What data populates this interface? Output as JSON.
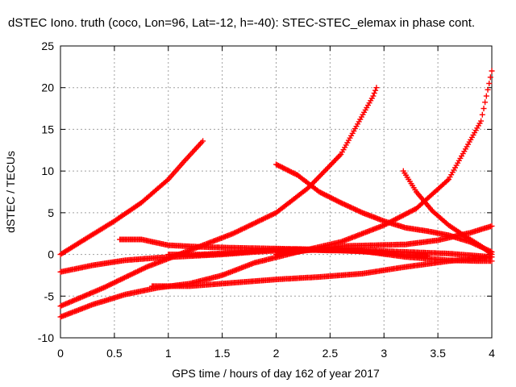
{
  "chart_data": {
    "type": "scatter",
    "title": "dSTEC Iono. truth (coco, Lon=96, Lat=-12, h=-40): STEC-STEC_elemax in phase cont.",
    "xlabel": "GPS time / hours of day 162 of year 2017",
    "ylabel": "dSTEC  / TECUs",
    "xlim": [
      0,
      4
    ],
    "ylim": [
      -10,
      25
    ],
    "xticks": [
      0,
      0.5,
      1,
      1.5,
      2,
      2.5,
      3,
      3.5,
      4
    ],
    "xtick_labels": [
      "0",
      "0.5",
      "1",
      "1.5",
      "2",
      "2.5",
      "3",
      "3.5",
      "4"
    ],
    "yticks": [
      -10,
      -5,
      0,
      5,
      10,
      15,
      20,
      25
    ],
    "ytick_labels": [
      "-10",
      "-5",
      "0",
      "5",
      "10",
      "15",
      "20",
      "25"
    ],
    "grid": true,
    "legend": "none",
    "marker": "+ (plus), dense",
    "color": "#ff0000",
    "series": [
      {
        "x": [
          0,
          0.25,
          0.5,
          0.75,
          1.0,
          1.15,
          1.32
        ],
        "y": [
          0,
          2,
          4,
          6.2,
          9,
          11.2,
          13.6
        ]
      },
      {
        "x": [
          0,
          0.4,
          0.8,
          1.2,
          1.6,
          2.0,
          2.3,
          2.6,
          2.9,
          2.93
        ],
        "y": [
          -6.2,
          -4,
          -1.5,
          0.5,
          2.5,
          5,
          8,
          12,
          19,
          20
        ]
      },
      {
        "x": [
          0,
          0.3,
          0.6,
          0.9,
          1.2,
          1.5,
          1.8,
          2.2,
          2.6,
          3.0,
          3.2,
          3.4
        ],
        "y": [
          -2.1,
          -1.3,
          -0.7,
          -0.4,
          -0.2,
          0,
          0.3,
          0.6,
          0.5,
          0.2,
          -0.1,
          -0.2
        ]
      },
      {
        "x": [
          0,
          0.3,
          0.6,
          0.9,
          1.2,
          1.5,
          1.8,
          2.2,
          2.6,
          3.0,
          3.3,
          3.6,
          3.9,
          4.0
        ],
        "y": [
          -7.5,
          -6,
          -4.8,
          -4,
          -3.5,
          -2.5,
          -1,
          0.3,
          1.5,
          3.5,
          5.5,
          9,
          16,
          22
        ]
      },
      {
        "x": [
          0.55,
          0.75,
          1.0,
          1.3,
          1.6,
          2.0,
          2.4,
          2.8,
          3.2,
          3.6,
          3.9,
          4.0
        ],
        "y": [
          1.8,
          1.8,
          1.1,
          0.9,
          0.8,
          0.7,
          0.6,
          0.5,
          0.3,
          0.1,
          -0.2,
          -0.3
        ]
      },
      {
        "x": [
          0.85,
          1.2,
          1.6,
          2.0,
          2.4,
          2.8,
          3.2,
          3.6,
          4.0
        ],
        "y": [
          -3.8,
          -3.8,
          -3.4,
          -3.0,
          -2.7,
          -2.3,
          -1.5,
          -0.8,
          -0.3
        ]
      },
      {
        "x": [
          1.0,
          1.3,
          1.6,
          2.0,
          2.4,
          2.8,
          3.2,
          3.6,
          3.9,
          4.0
        ],
        "y": [
          0,
          0,
          0.2,
          0.6,
          0.5,
          0.4,
          -0.3,
          -0.7,
          -0.8,
          -0.8
        ]
      },
      {
        "x": [
          2.0,
          2.2,
          2.4,
          2.6,
          2.8,
          3.0,
          3.2,
          3.4,
          3.6,
          3.8,
          4.0
        ],
        "y": [
          10.8,
          9.5,
          7.5,
          6.2,
          5,
          4,
          3.2,
          2.8,
          2.3,
          1.5,
          0.3
        ]
      },
      {
        "x": [
          2.0,
          2.3,
          2.6,
          2.9,
          3.2,
          3.5,
          3.8,
          4.0
        ],
        "y": [
          0,
          0.5,
          1,
          1.1,
          1.2,
          1.7,
          2.6,
          3.4
        ]
      },
      {
        "x": [
          3.18,
          3.3,
          3.45,
          3.6,
          3.75,
          3.9,
          4.0
        ],
        "y": [
          10,
          7.5,
          5.2,
          3.5,
          2.2,
          1,
          0
        ]
      }
    ]
  }
}
